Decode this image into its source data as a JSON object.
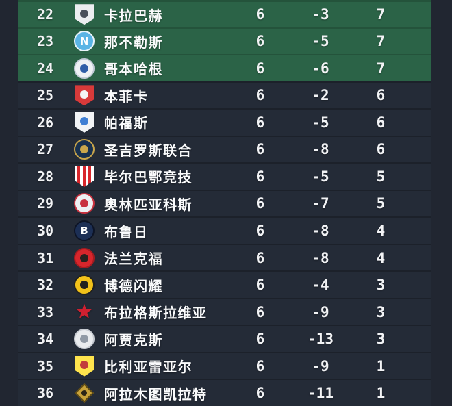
{
  "colors": {
    "page_bg": "#212631",
    "row_bg": "#242b37",
    "playoff_zone_bg": "#2b6347",
    "text_primary": "#f2f3f5"
  },
  "table": {
    "rows": [
      {
        "rank": "22",
        "team": "卡拉巴赫",
        "played": "6",
        "gd": "-3",
        "pts": "7",
        "zone": "playoff",
        "logo": {
          "icon": "qarabag-crest",
          "shape": "shield",
          "bg": "#ecedf0",
          "inner": "#4a4f5a",
          "letter": ""
        }
      },
      {
        "rank": "23",
        "team": "那不勒斯",
        "played": "6",
        "gd": "-5",
        "pts": "7",
        "zone": "playoff",
        "logo": {
          "icon": "napoli-crest",
          "shape": "circle",
          "bg": "#5bb4e5",
          "border": "#eaf4fb",
          "inner": "#ffffff",
          "letter": "N"
        }
      },
      {
        "rank": "24",
        "team": "哥本哈根",
        "played": "6",
        "gd": "-6",
        "pts": "7",
        "zone": "playoff",
        "logo": {
          "icon": "copenhagen-crest",
          "shape": "circle",
          "bg": "#eef1f5",
          "border": "#c3cbd8",
          "inner": "#2f5ea8",
          "letter": ""
        }
      },
      {
        "rank": "25",
        "team": "本菲卡",
        "played": "6",
        "gd": "-2",
        "pts": "6",
        "zone": "out",
        "logo": {
          "icon": "benfica-crest",
          "shape": "shield",
          "bg": "#d83a3a",
          "inner": "#f4f4f4",
          "letter": ""
        }
      },
      {
        "rank": "26",
        "team": "帕福斯",
        "played": "6",
        "gd": "-5",
        "pts": "6",
        "zone": "out",
        "logo": {
          "icon": "pafos-crest",
          "shape": "shield",
          "bg": "#f2f4f6",
          "inner": "#3f7fd4",
          "letter": ""
        }
      },
      {
        "rank": "27",
        "team": "圣吉罗斯联合",
        "played": "6",
        "gd": "-8",
        "pts": "6",
        "zone": "out",
        "logo": {
          "icon": "union-sg-crest",
          "shape": "circle",
          "bg": "#17304f",
          "border": "#caa64b",
          "inner": "#caa64b",
          "letter": ""
        }
      },
      {
        "rank": "28",
        "team": "毕尔巴鄂竞技",
        "played": "6",
        "gd": "-5",
        "pts": "5",
        "zone": "out",
        "logo": {
          "icon": "athletic-bilbao-crest",
          "shape": "stripes",
          "bg": "#ffffff",
          "stripe": "#d8272c",
          "inner": "",
          "letter": ""
        }
      },
      {
        "rank": "29",
        "team": "奥林匹亚科斯",
        "played": "6",
        "gd": "-7",
        "pts": "5",
        "zone": "out",
        "logo": {
          "icon": "olympiacos-crest",
          "shape": "circle",
          "bg": "#edf0f2",
          "border": "#c8313e",
          "inner": "#c8313e",
          "letter": ""
        }
      },
      {
        "rank": "30",
        "team": "布鲁日",
        "played": "6",
        "gd": "-8",
        "pts": "4",
        "zone": "out",
        "logo": {
          "icon": "club-brugge-crest",
          "shape": "circle",
          "bg": "#1c2f55",
          "border": "#0d1426",
          "inner": "#ffffff",
          "letter": "B"
        }
      },
      {
        "rank": "31",
        "team": "法兰克福",
        "played": "6",
        "gd": "-8",
        "pts": "4",
        "zone": "out",
        "logo": {
          "icon": "frankfurt-crest",
          "shape": "circle",
          "bg": "#d7262c",
          "border": "#a51b20",
          "inner": "#28211f",
          "letter": ""
        }
      },
      {
        "rank": "32",
        "team": "博德闪耀",
        "played": "6",
        "gd": "-4",
        "pts": "3",
        "zone": "out",
        "logo": {
          "icon": "bodo-glimt-crest",
          "shape": "circle",
          "bg": "#f2c21a",
          "border": "#21211f",
          "inner": "#21211f",
          "letter": ""
        }
      },
      {
        "rank": "33",
        "team": "布拉格斯拉维亚",
        "played": "6",
        "gd": "-9",
        "pts": "3",
        "zone": "out",
        "logo": {
          "icon": "slavia-prague-crest",
          "shape": "star",
          "bg": "#cf2030",
          "inner": "",
          "letter": ""
        }
      },
      {
        "rank": "34",
        "team": "阿贾克斯",
        "played": "6",
        "gd": "-13",
        "pts": "3",
        "zone": "out",
        "logo": {
          "icon": "ajax-crest",
          "shape": "circle",
          "bg": "#e9ebee",
          "border": "#c6cad1",
          "inner": "#9099a5",
          "letter": ""
        }
      },
      {
        "rank": "35",
        "team": "比利亚雷亚尔",
        "played": "6",
        "gd": "-9",
        "pts": "1",
        "zone": "out",
        "logo": {
          "icon": "villarreal-crest",
          "shape": "shield",
          "bg": "#ffe44d",
          "inner": "#c23b3b",
          "letter": ""
        }
      },
      {
        "rank": "36",
        "team": "阿拉木图凯拉特",
        "played": "6",
        "gd": "-11",
        "pts": "1",
        "zone": "out",
        "logo": {
          "icon": "kairat-almaty-crest",
          "shape": "diamond",
          "bg": "#c8a23a",
          "border": "#5e4a14",
          "inner": "#2c2616",
          "letter": ""
        }
      }
    ]
  }
}
